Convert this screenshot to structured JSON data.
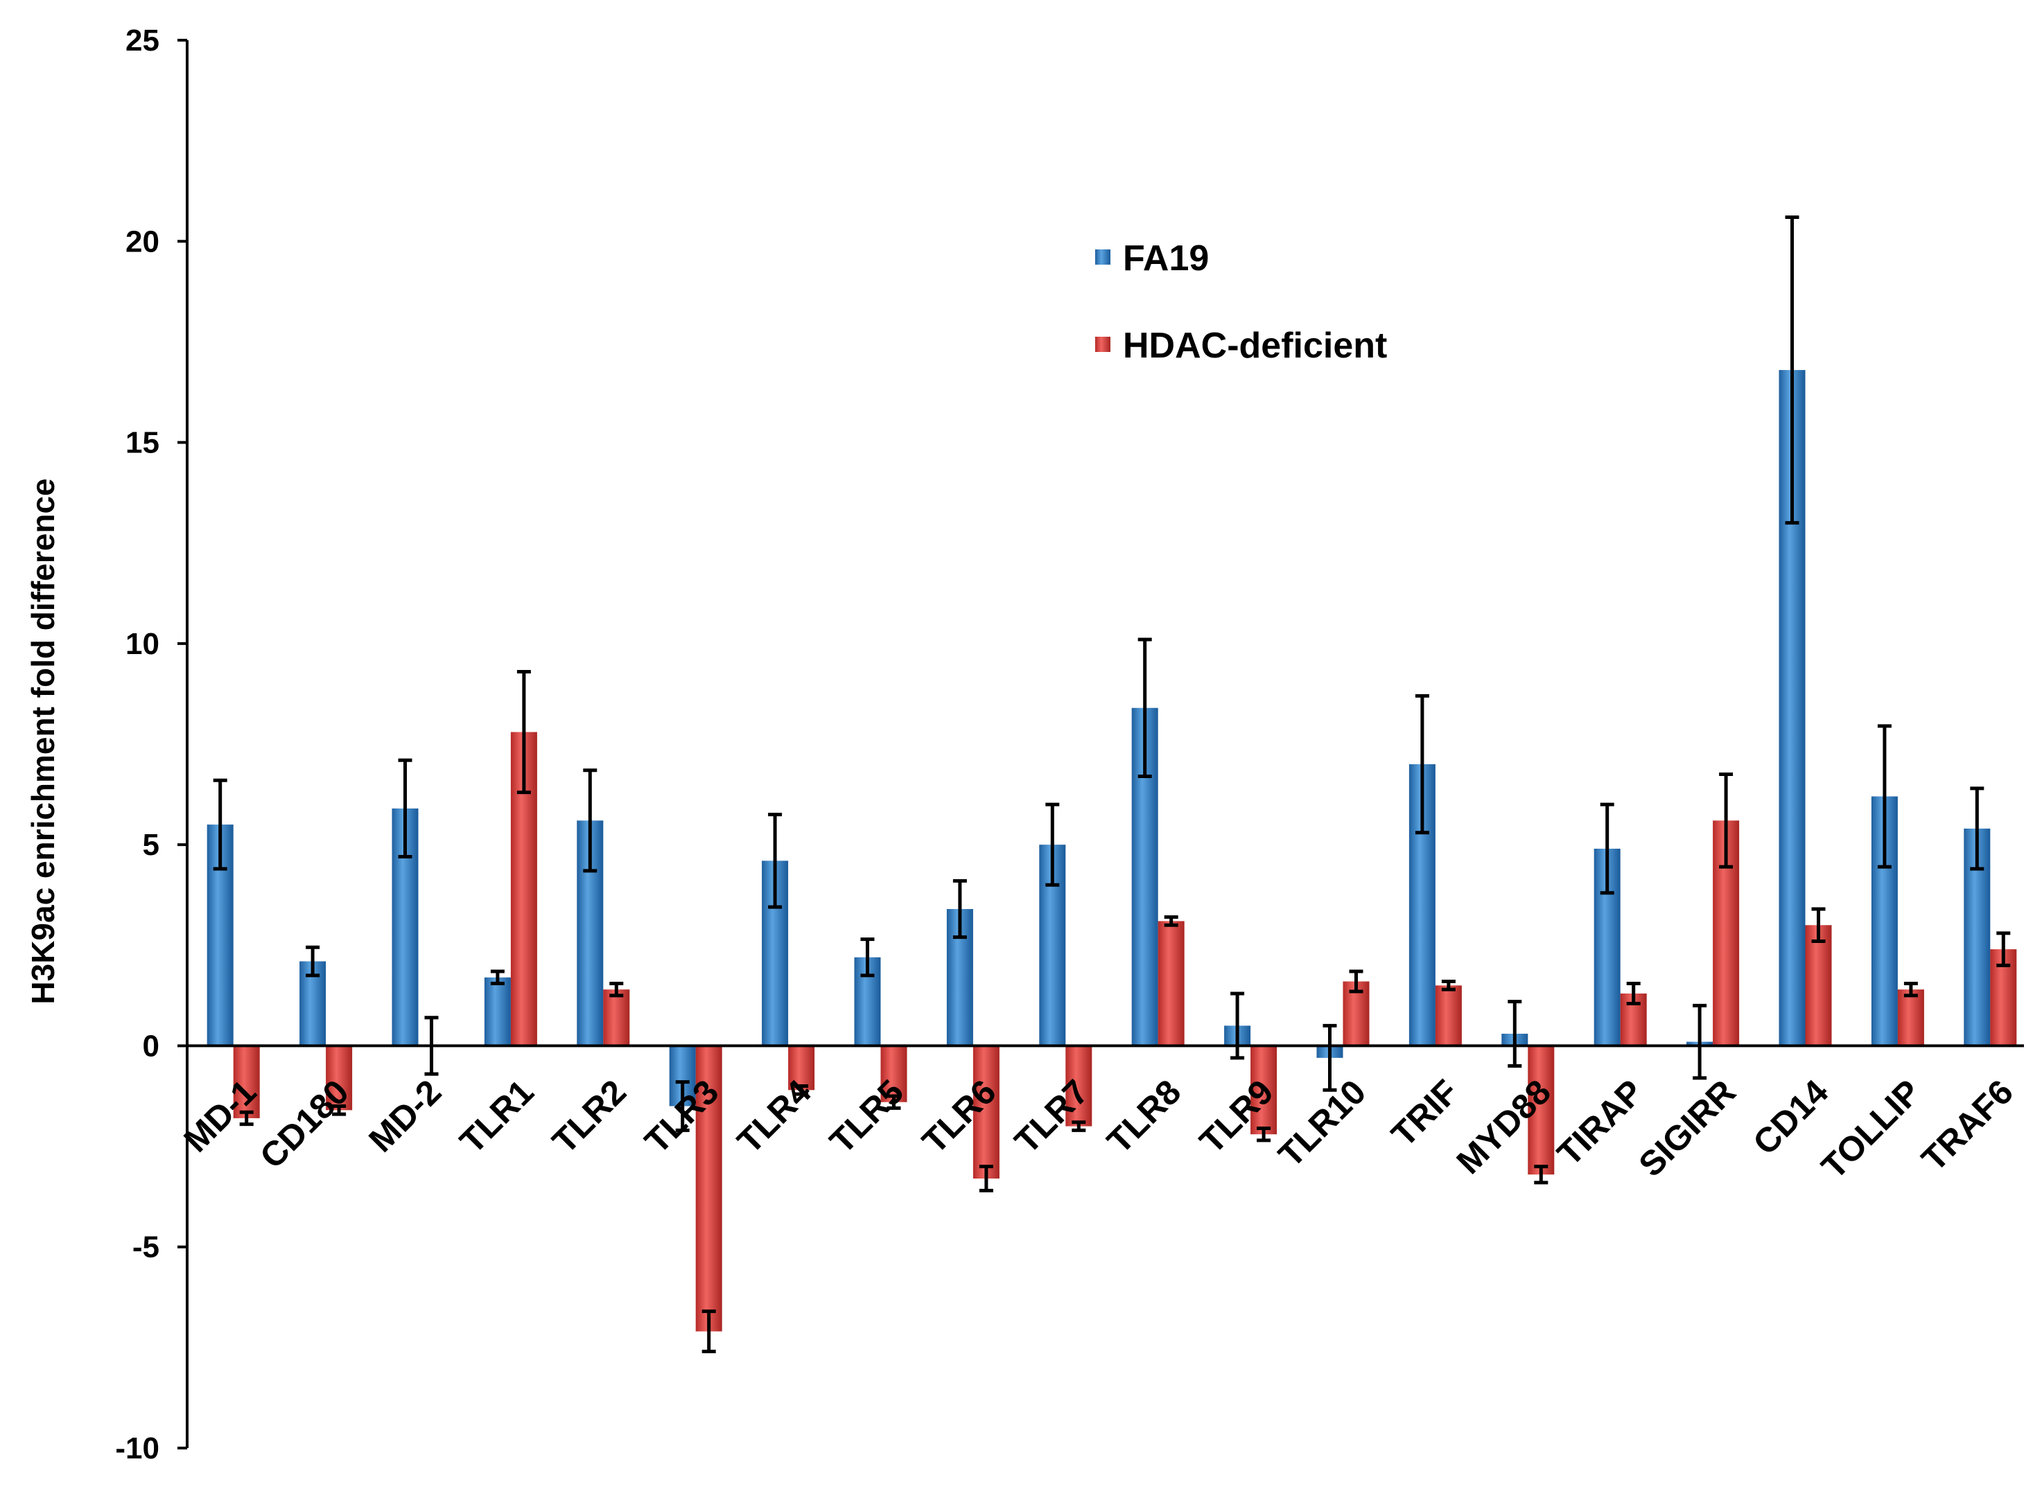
{
  "chart_data": {
    "type": "bar",
    "title": "",
    "xlabel": "",
    "ylabel": "H3K9ac enrichment fold difference",
    "ylim": [
      -10,
      25
    ],
    "yticks": [
      25,
      20,
      15,
      10,
      5,
      0,
      -5,
      -10
    ],
    "ytick_labels": [
      "25",
      "20",
      "15",
      "10",
      "5",
      "0",
      "-5",
      "-10"
    ],
    "grid": false,
    "legend_position": "top-center",
    "categories": [
      "MD-1",
      "CD180",
      "MD-2",
      "TLR1",
      "TLR2",
      "TLR3",
      "TLR4",
      "TLR5",
      "TLR6",
      "TLR7",
      "TLR8",
      "TLR9",
      "TLR10",
      "TRIF",
      "MYD88",
      "TIRAP",
      "SIGIRR",
      "CD14",
      "TOLLIP",
      "TRAF6"
    ],
    "series": [
      {
        "name": "FA19",
        "color": "#2f7fc4",
        "values": [
          5.5,
          2.1,
          5.9,
          1.7,
          5.6,
          -1.5,
          4.6,
          2.2,
          3.4,
          5.0,
          8.4,
          0.5,
          -0.3,
          7.0,
          0.3,
          4.9,
          0.1,
          16.8,
          6.2,
          5.4
        ],
        "errors": [
          1.1,
          0.35,
          1.2,
          0.15,
          1.25,
          0.6,
          1.15,
          0.45,
          0.7,
          1.0,
          1.7,
          0.8,
          0.8,
          1.7,
          0.8,
          1.1,
          0.9,
          3.8,
          1.75,
          1.0
        ]
      },
      {
        "name": "HDAC-deficient",
        "color": "#d93a36",
        "values": [
          -1.8,
          -1.6,
          0.0,
          7.8,
          1.4,
          -7.1,
          -1.1,
          -1.4,
          -3.3,
          -2.0,
          3.1,
          -2.2,
          1.6,
          1.5,
          -3.2,
          1.3,
          5.6,
          3.0,
          1.4,
          2.4
        ]
      }
    ],
    "hdac_errors": [
      0.15,
      0.1,
      0.7,
      1.5,
      0.15,
      0.5,
      0.1,
      0.15,
      0.3,
      0.1,
      0.1,
      0.15,
      0.25,
      0.1,
      0.2,
      0.25,
      1.15,
      0.4,
      0.15,
      0.4
    ]
  }
}
